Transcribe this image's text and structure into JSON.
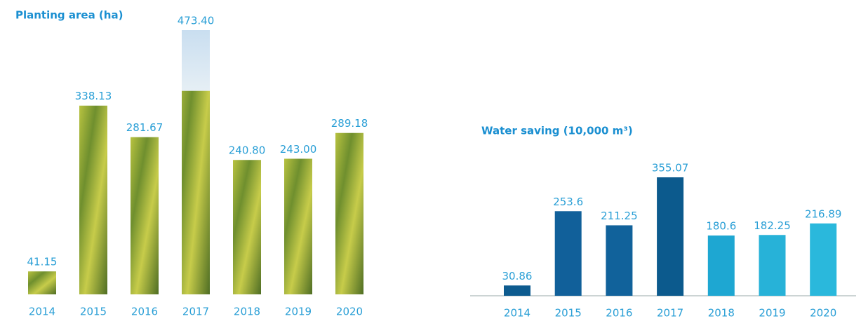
{
  "chart_data": [
    {
      "type": "bar",
      "title": "Planting area (ha)",
      "categories": [
        "2014",
        "2015",
        "2016",
        "2017",
        "2018",
        "2019",
        "2020"
      ],
      "values": [
        41.15,
        338.13,
        281.67,
        473.4,
        240.8,
        243.0,
        289.18
      ],
      "value_labels": [
        "41.15",
        "338.13",
        "281.67",
        "473.40",
        "240.80",
        "243.00",
        "289.18"
      ],
      "color": "#8fa836"
    },
    {
      "type": "bar",
      "title": "Water saving (10,000 m³)",
      "categories": [
        "2014",
        "2015",
        "2016",
        "2017",
        "2018",
        "2019",
        "2020"
      ],
      "values": [
        30.86,
        253.6,
        211.25,
        355.07,
        180.6,
        182.25,
        216.89
      ],
      "colors": [
        "#0d5b8f",
        "#11609a",
        "#11629b",
        "#0c5a8d",
        "#1ea7d2",
        "#27b2d8",
        "#2ab8dc"
      ]
    }
  ]
}
